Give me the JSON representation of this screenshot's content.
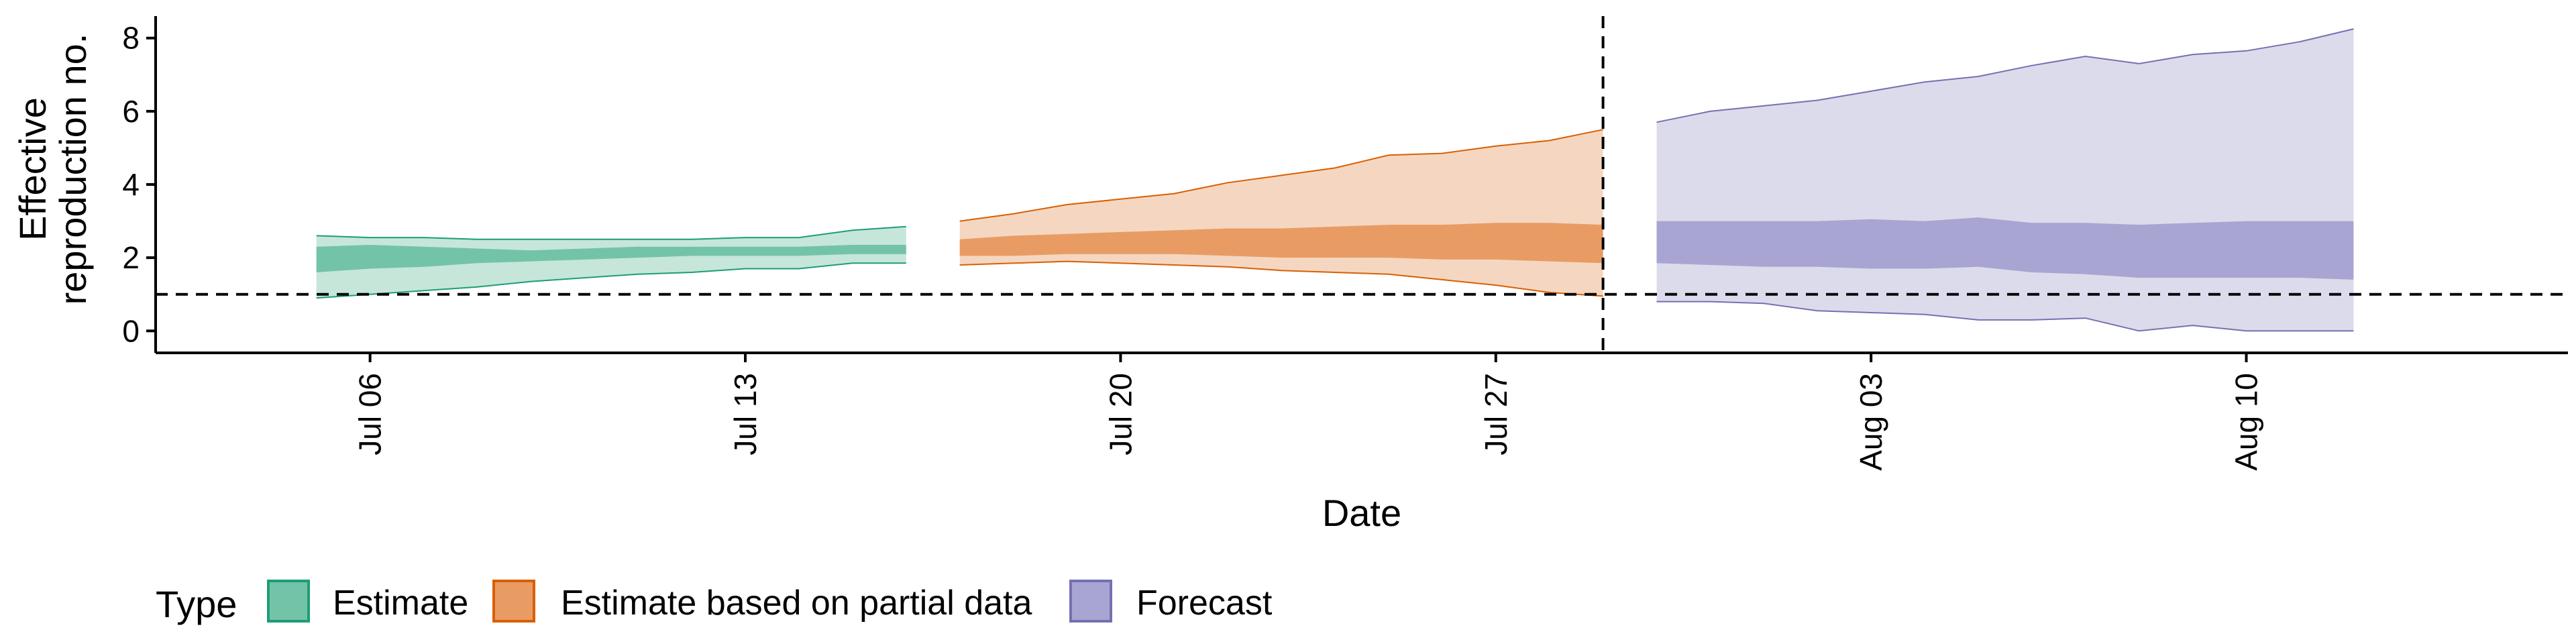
{
  "chart_data": {
    "type": "area",
    "xlabel": "Date",
    "ylabel_lines": [
      "Effective",
      "reproduction no."
    ],
    "y_ticks": [
      0,
      2,
      4,
      6,
      8
    ],
    "ylim": [
      -0.6,
      8.6
    ],
    "xlim": [
      "2020-07-02",
      "2020-08-16"
    ],
    "x_ticks": [
      {
        "date": "2020-07-06",
        "label": "Jul 06"
      },
      {
        "date": "2020-07-13",
        "label": "Jul 13"
      },
      {
        "date": "2020-07-20",
        "label": "Jul 20"
      },
      {
        "date": "2020-07-27",
        "label": "Jul 27"
      },
      {
        "date": "2020-08-03",
        "label": "Aug 03"
      },
      {
        "date": "2020-08-10",
        "label": "Aug 10"
      }
    ],
    "reference_hline": 1,
    "reference_vline": "2020-07-29",
    "grid": false,
    "legend_placement": "bottom-left",
    "legend_title": "Type",
    "series": [
      {
        "name": "Estimate",
        "color": "#1b9e77",
        "fill_light": "#c6e6da",
        "fill_dark": "#73c3a9",
        "dates": [
          "2020-07-05",
          "2020-07-06",
          "2020-07-07",
          "2020-07-08",
          "2020-07-09",
          "2020-07-10",
          "2020-07-11",
          "2020-07-12",
          "2020-07-13",
          "2020-07-14",
          "2020-07-15",
          "2020-07-16"
        ],
        "lower90": [
          0.9,
          1.0,
          1.1,
          1.2,
          1.35,
          1.45,
          1.55,
          1.6,
          1.7,
          1.7,
          1.85,
          1.85
        ],
        "lower50": [
          1.6,
          1.7,
          1.75,
          1.85,
          1.9,
          1.95,
          2.0,
          2.05,
          2.05,
          2.05,
          2.1,
          2.1
        ],
        "upper50": [
          2.3,
          2.35,
          2.3,
          2.25,
          2.2,
          2.25,
          2.3,
          2.3,
          2.3,
          2.3,
          2.35,
          2.35
        ],
        "upper90": [
          2.6,
          2.55,
          2.55,
          2.5,
          2.5,
          2.5,
          2.5,
          2.5,
          2.55,
          2.55,
          2.75,
          2.85
        ]
      },
      {
        "name": "Estimate based on partial data",
        "color": "#d95f02",
        "fill_light": "#f5d7c1",
        "fill_dark": "#e89c63",
        "dates": [
          "2020-07-17",
          "2020-07-18",
          "2020-07-19",
          "2020-07-20",
          "2020-07-21",
          "2020-07-22",
          "2020-07-23",
          "2020-07-24",
          "2020-07-25",
          "2020-07-26",
          "2020-07-27",
          "2020-07-28",
          "2020-07-29"
        ],
        "lower90": [
          1.8,
          1.85,
          1.9,
          1.85,
          1.8,
          1.75,
          1.65,
          1.6,
          1.55,
          1.4,
          1.25,
          1.05,
          0.95
        ],
        "lower50": [
          2.05,
          2.05,
          2.1,
          2.1,
          2.1,
          2.05,
          2.0,
          2.0,
          2.0,
          1.95,
          1.95,
          1.9,
          1.85
        ],
        "upper50": [
          2.5,
          2.6,
          2.65,
          2.7,
          2.75,
          2.8,
          2.8,
          2.85,
          2.9,
          2.9,
          2.95,
          2.95,
          2.9
        ],
        "upper90": [
          3.0,
          3.2,
          3.45,
          3.6,
          3.75,
          4.05,
          4.25,
          4.45,
          4.8,
          4.85,
          5.05,
          5.2,
          5.5
        ]
      },
      {
        "name": "Forecast",
        "color": "#7570b3",
        "fill_light": "#dcdbeb",
        "fill_dark": "#a9a5d2",
        "dates": [
          "2020-07-30",
          "2020-07-31",
          "2020-08-01",
          "2020-08-02",
          "2020-08-03",
          "2020-08-04",
          "2020-08-05",
          "2020-08-06",
          "2020-08-07",
          "2020-08-08",
          "2020-08-09",
          "2020-08-10",
          "2020-08-11",
          "2020-08-12"
        ],
        "lower90": [
          0.8,
          0.8,
          0.75,
          0.55,
          0.5,
          0.45,
          0.3,
          0.3,
          0.35,
          0.0,
          0.15,
          0.0,
          0.0,
          0.0
        ],
        "lower50": [
          1.85,
          1.8,
          1.75,
          1.75,
          1.7,
          1.7,
          1.75,
          1.6,
          1.55,
          1.45,
          1.45,
          1.45,
          1.45,
          1.4
        ],
        "upper50": [
          3.0,
          3.0,
          3.0,
          3.0,
          3.05,
          3.0,
          3.1,
          2.95,
          2.95,
          2.9,
          2.95,
          3.0,
          3.0,
          3.0
        ],
        "upper90": [
          5.7,
          6.0,
          6.15,
          6.3,
          6.55,
          6.8,
          6.95,
          7.25,
          7.5,
          7.3,
          7.55,
          7.65,
          7.9,
          8.25
        ]
      }
    ]
  }
}
